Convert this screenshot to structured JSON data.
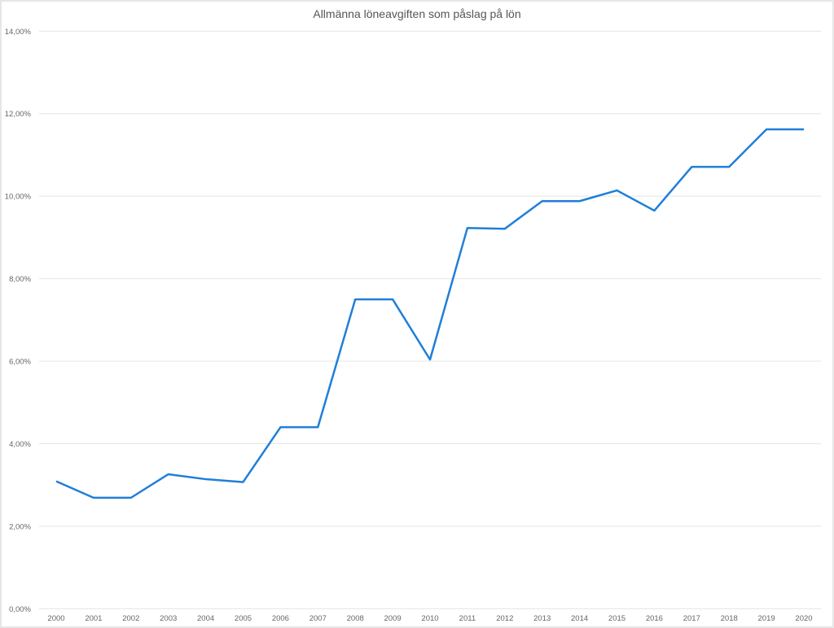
{
  "chart_data": {
    "type": "line",
    "title": "Allmänna löneavgiften som påslag på lön",
    "xlabel": "",
    "ylabel": "",
    "categories": [
      "2000",
      "2001",
      "2002",
      "2003",
      "2004",
      "2005",
      "2006",
      "2007",
      "2008",
      "2009",
      "2010",
      "2011",
      "2012",
      "2013",
      "2014",
      "2015",
      "2016",
      "2017",
      "2018",
      "2019",
      "2020"
    ],
    "series": [
      {
        "values": [
          3.09,
          2.69,
          2.69,
          3.26,
          3.14,
          3.07,
          4.4,
          4.4,
          7.5,
          7.5,
          6.04,
          9.23,
          9.21,
          9.88,
          9.88,
          10.14,
          9.65,
          10.71,
          10.71,
          11.62,
          11.62
        ],
        "color": "#1f7fd8"
      }
    ],
    "ylim": [
      0,
      14
    ],
    "yticks": [
      0,
      2,
      4,
      6,
      8,
      10,
      12,
      14
    ],
    "ytick_labels": [
      "0,00%",
      "2,00%",
      "4,00%",
      "6,00%",
      "8,00%",
      "10,00%",
      "12,00%",
      "14,00%"
    ],
    "grid": true,
    "legend": "none"
  }
}
